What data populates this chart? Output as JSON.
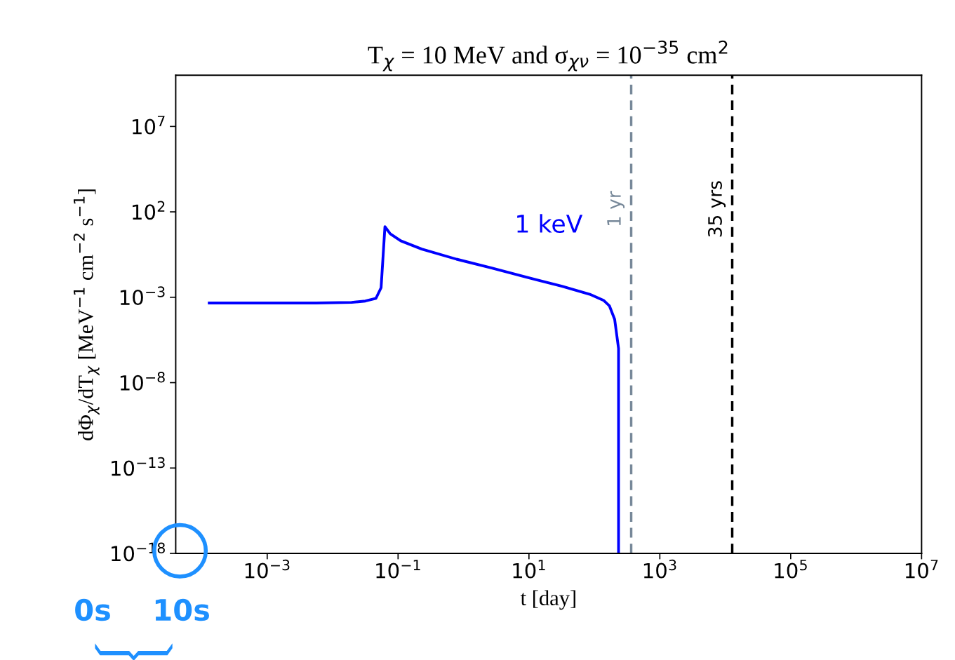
{
  "chart_data": {
    "type": "line",
    "title": "T$_{χ}$ = 10 MeV and σ$_{χν}$ = 10$^{−35}$ cm$^{2}$",
    "xlabel": "t [day]",
    "ylabel": "dΦ$_{χ}$/dT$_{χ}$ [MeV$^{−1}$ cm$^{−2}$ s$^{−1}$]",
    "log": "xy",
    "xlim": [
      4e-05,
      10000000.0
    ],
    "ylim": [
      1e-18,
      10000000000.0
    ],
    "xticks": [
      {
        "value": 0.001,
        "label": "10$^{−3}$"
      },
      {
        "value": 0.1,
        "label": "10$^{−1}$"
      },
      {
        "value": 10,
        "label": "10$^{1}$"
      },
      {
        "value": 1000,
        "label": "10$^{3}$"
      },
      {
        "value": 100000,
        "label": "10$^{5}$"
      },
      {
        "value": 10000000,
        "label": "10$^{7}$"
      }
    ],
    "yticks": [
      {
        "value": 1e-18,
        "label": "10$^{−18}$"
      },
      {
        "value": 1e-13,
        "label": "10$^{−13}$"
      },
      {
        "value": 1e-08,
        "label": "10$^{−8}$"
      },
      {
        "value": 0.001,
        "label": "10$^{−3}$"
      },
      {
        "value": 100,
        "label": "10$^{2}$"
      },
      {
        "value": 10000000,
        "label": "10$^{7}$"
      }
    ],
    "grid": false,
    "legend": false,
    "series": [
      {
        "name": "1 keV",
        "color": "#0000ff",
        "x": [
          0.00013,
          0.0056,
          0.0195,
          0.0316,
          0.046,
          0.055,
          0.063,
          0.076,
          0.11,
          0.23,
          0.78,
          2.7,
          9.1,
          32,
          85,
          138,
          170,
          204,
          234,
          234
        ],
        "values": [
          0.00046,
          0.00046,
          0.0005,
          0.0006,
          0.00087,
          0.0036,
          13.5,
          5.2,
          2.0,
          0.66,
          0.17,
          0.051,
          0.015,
          0.0044,
          0.0015,
          0.00066,
          0.00031,
          5.1e-05,
          1e-06,
          1e-18
        ]
      }
    ],
    "ref_lines": [
      {
        "axis": "x",
        "value": 365,
        "label": "1 yr",
        "color": "#778899",
        "line_style": "dashed"
      },
      {
        "axis": "x",
        "value": 12775,
        "label": "35 yrs",
        "color": "#000000",
        "line_style": "dashed"
      }
    ],
    "annotations": [
      "0s",
      "10s"
    ]
  }
}
